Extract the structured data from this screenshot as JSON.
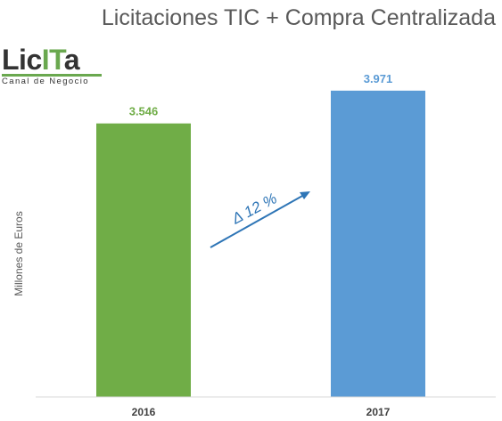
{
  "title": "Licitaciones TIC + Compra Centralizada",
  "logo": {
    "text": "LicITa",
    "tagline": "Canal de Negocio"
  },
  "annotation": "Δ 12 %",
  "colors": {
    "bar_2016": "#70ad47",
    "bar_2017": "#5b9bd5",
    "label_2016": "#70ad47",
    "label_2017": "#5b9bd5",
    "arrow": "#2e75b6",
    "logo_green": "#6aa84f"
  },
  "chart_data": {
    "type": "bar",
    "categories": [
      "2016",
      "2017"
    ],
    "values": [
      3546,
      3971
    ],
    "data_labels": [
      "3.546",
      "3.971"
    ],
    "title": "Licitaciones TIC + Compra Centralizada",
    "xlabel": "",
    "ylabel": "Millones de Euros",
    "ylim": [
      0,
      4500
    ],
    "grid": false,
    "legend": "none"
  }
}
